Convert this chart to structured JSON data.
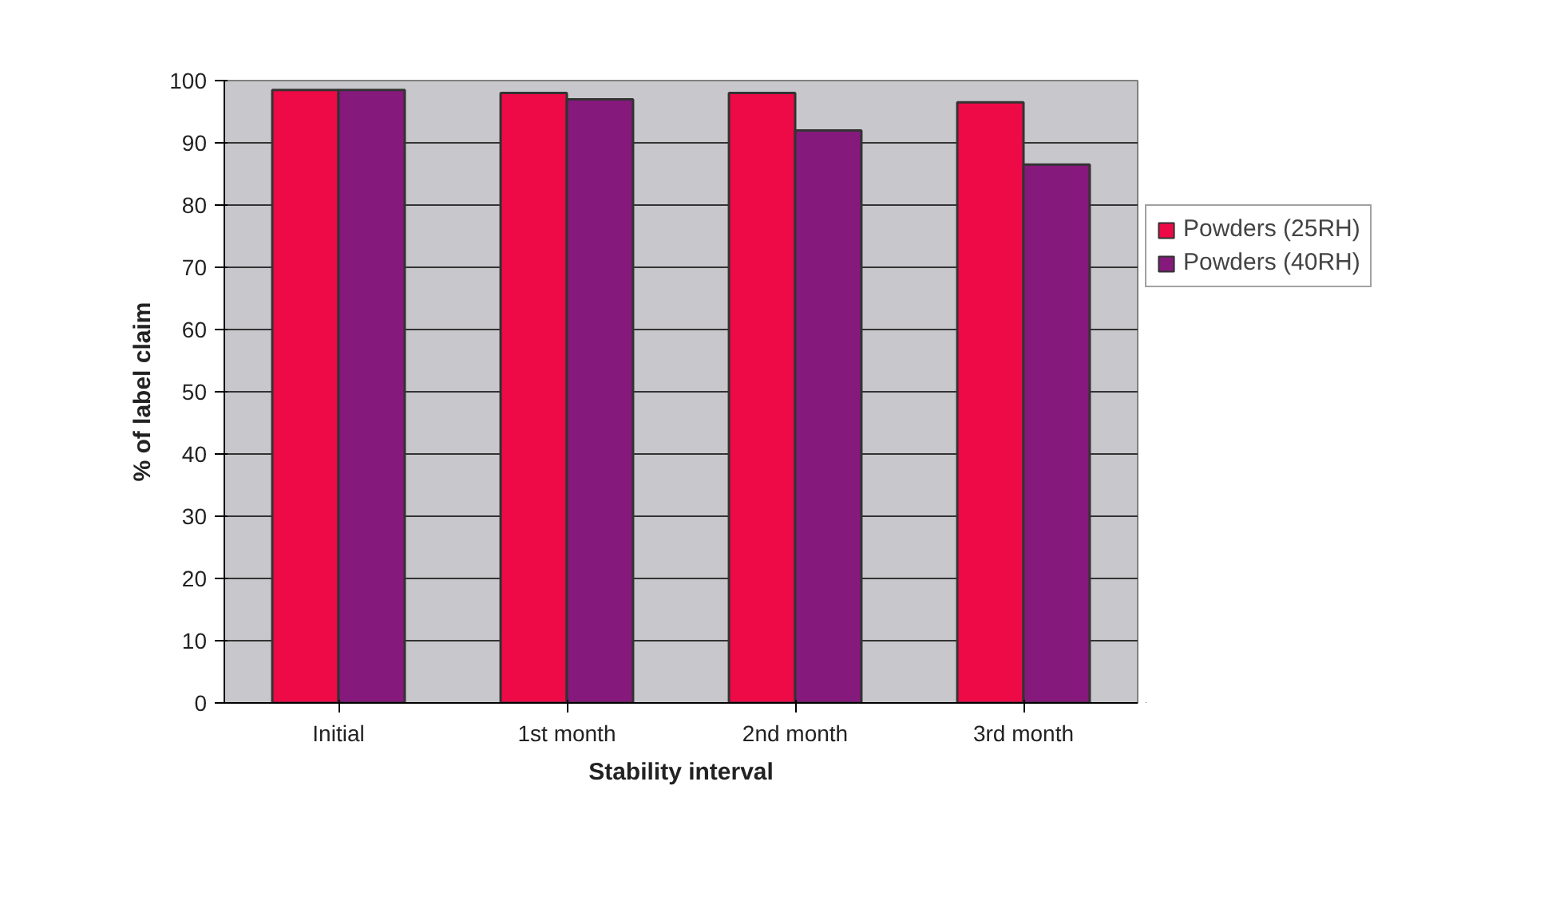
{
  "chart_data": {
    "type": "bar",
    "xlabel": "Stability interval",
    "ylabel": "% of label claim",
    "categories": [
      "Initial",
      "1st month",
      "2nd month",
      "3rd month"
    ],
    "series": [
      {
        "name": "Powders (25RH)",
        "color": "#ee0a46",
        "values": [
          98.5,
          98,
          98,
          96.5
        ]
      },
      {
        "name": "Powders (40RH)",
        "color": "#86197c",
        "values": [
          98.5,
          97,
          92,
          86.5
        ]
      }
    ],
    "ylim": [
      0,
      100
    ],
    "yticks": [
      0,
      10,
      20,
      30,
      40,
      50,
      60,
      70,
      80,
      90,
      100
    ],
    "grid": "y",
    "legend": "right"
  }
}
